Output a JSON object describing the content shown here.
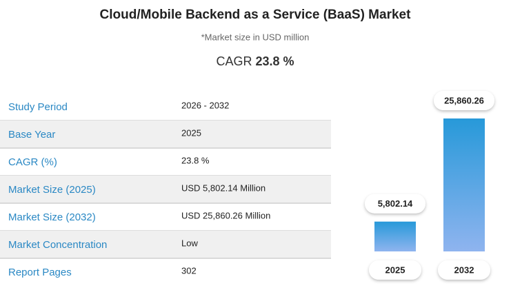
{
  "header": {
    "title": "Cloud/Mobile Backend as a Service (BaaS) Market",
    "subtitle": "*Market size in USD million",
    "cagr_label": "CAGR",
    "cagr_value": "23.8 %"
  },
  "table": {
    "rows": [
      [
        "Study Period",
        "2026 - 2032"
      ],
      [
        "Base Year",
        "2025"
      ],
      [
        "CAGR (%)",
        "23.8 %"
      ],
      [
        "Market Size (2025)",
        "USD 5,802.14 Million"
      ],
      [
        "Market Size (2032)",
        "USD 25,860.26 Million"
      ],
      [
        "Market Concentration",
        "Low"
      ],
      [
        "Report Pages",
        "302"
      ]
    ]
  },
  "chart_data": {
    "type": "bar",
    "categories": [
      "2025",
      "2032"
    ],
    "values": [
      5802.14,
      25860.26
    ],
    "value_labels": [
      "5,802.14",
      "25,860.26"
    ],
    "color": [
      "#2799d9",
      "#8fb4ef"
    ]
  }
}
